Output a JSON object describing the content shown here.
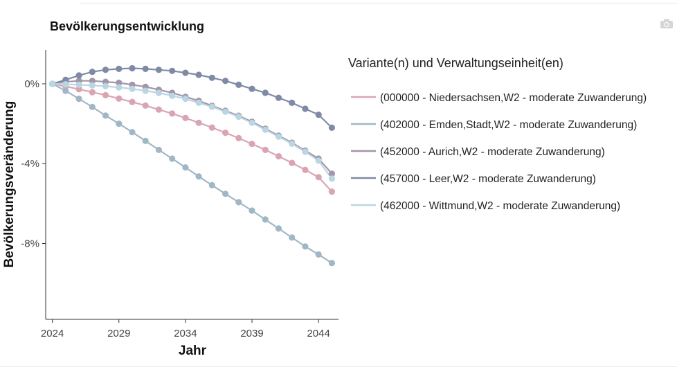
{
  "camera_icon": "camera-icon",
  "chart_data": {
    "type": "line",
    "title": "Bevölkerungsentwicklung",
    "xlabel": "Jahr",
    "ylabel": "Bevölkerungsveränderung",
    "xlim": [
      2023.5,
      2045.5
    ],
    "ylim": [
      -11.8,
      1.7
    ],
    "x_ticks": [
      2024,
      2029,
      2034,
      2039,
      2044
    ],
    "y_ticks": [
      {
        "value": 0,
        "label": "0%"
      },
      {
        "value": -4,
        "label": "-4%"
      },
      {
        "value": -8,
        "label": "-8%"
      }
    ],
    "grid": false,
    "legend_title": "Variante(n) und Verwaltungseinheit(en)",
    "legend_position": "right",
    "x": [
      2024,
      2025,
      2026,
      2027,
      2028,
      2029,
      2030,
      2031,
      2032,
      2033,
      2034,
      2035,
      2036,
      2037,
      2038,
      2039,
      2040,
      2041,
      2042,
      2043,
      2044,
      2045
    ],
    "series": [
      {
        "name": "(000000 - Niedersachsen,W2 - moderate Zuwanderung)",
        "color": "#d9a5b3",
        "values": [
          0.0,
          -0.13,
          -0.27,
          -0.42,
          -0.57,
          -0.74,
          -0.91,
          -1.09,
          -1.29,
          -1.49,
          -1.71,
          -1.95,
          -2.19,
          -2.45,
          -2.72,
          -3.01,
          -3.31,
          -3.63,
          -3.96,
          -4.31,
          -4.68,
          -5.4
        ]
      },
      {
        "name": "(402000 - Emden,Stadt,W2 - moderate Zuwanderung)",
        "color": "#a1b7c6",
        "values": [
          0.0,
          -0.35,
          -0.75,
          -1.16,
          -1.59,
          -2.0,
          -2.42,
          -2.86,
          -3.31,
          -3.75,
          -4.19,
          -4.64,
          -5.08,
          -5.51,
          -5.93,
          -6.35,
          -6.8,
          -7.25,
          -7.7,
          -8.15,
          -8.55,
          -8.98
        ]
      },
      {
        "name": "(452000 - Aurich,W2 - moderate Zuwanderung)",
        "color": "#a396ab",
        "values": [
          0.0,
          0.1,
          0.15,
          0.15,
          0.1,
          0.05,
          -0.05,
          -0.15,
          -0.3,
          -0.45,
          -0.65,
          -0.85,
          -1.1,
          -1.35,
          -1.6,
          -1.9,
          -2.25,
          -2.6,
          -2.95,
          -3.35,
          -3.75,
          -4.5
        ]
      },
      {
        "name": "(457000 - Leer,W2 - moderate Zuwanderung)",
        "color": "#7f8aa6",
        "values": [
          0.0,
          0.2,
          0.42,
          0.6,
          0.7,
          0.75,
          0.78,
          0.75,
          0.7,
          0.65,
          0.55,
          0.45,
          0.3,
          0.15,
          -0.05,
          -0.25,
          -0.45,
          -0.7,
          -0.95,
          -1.25,
          -1.55,
          -2.2
        ]
      },
      {
        "name": "(462000 - Wittmund,W2 - moderate Zuwanderung)",
        "color": "#bad6e2",
        "values": [
          0.0,
          -0.02,
          -0.05,
          -0.08,
          -0.12,
          -0.18,
          -0.25,
          -0.35,
          -0.45,
          -0.6,
          -0.75,
          -0.95,
          -1.15,
          -1.4,
          -1.65,
          -1.95,
          -2.3,
          -2.65,
          -3.0,
          -3.4,
          -3.85,
          -4.75
        ]
      }
    ]
  }
}
